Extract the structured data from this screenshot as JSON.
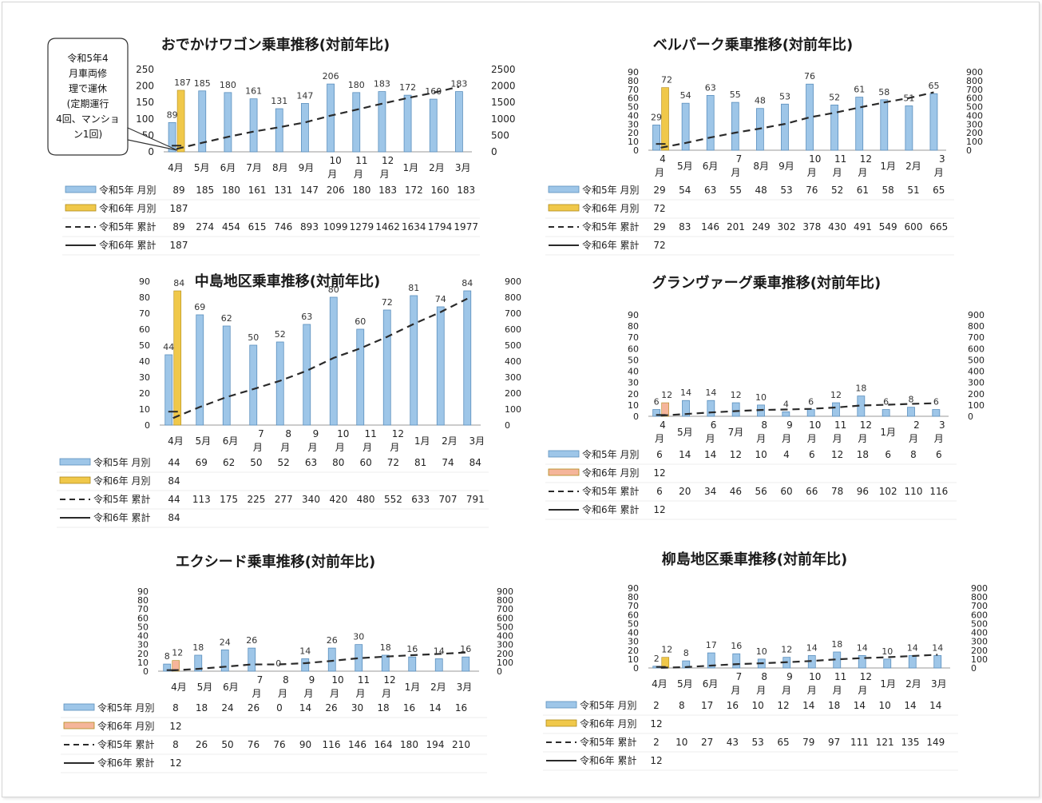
{
  "callout": "令和5年4月車両修理で運休(定期運行4回、マンション1回)",
  "callout_lines": [
    "令和5年4",
    "月車両修",
    "理で運休",
    "(定期運行",
    "4回、マンショ",
    "ン1回)"
  ],
  "month_labels": [
    "4月",
    "5月",
    "6月",
    "7月",
    "8月",
    "9月",
    "10月",
    "11月",
    "12月",
    "1月",
    "2月",
    "3月"
  ],
  "legend_labels": [
    "令和5年 月別",
    "令和6年 月別",
    "令和5年 累計",
    "令和6年 累計"
  ],
  "colors": {
    "r5_bar": "#9ec6e8",
    "r5_bar_stroke": "#5b8fbd",
    "r6_yellow": "#f0c84a",
    "r6_orange": "#f5b59a",
    "line": "#2a2a2a"
  },
  "chart_data": [
    {
      "type": "bar",
      "title": "おでかけワゴン乗車推移(対前年比)",
      "ylim": [
        0,
        250
      ],
      "ylim2": [
        0,
        2500
      ],
      "left_ticks": [
        0,
        50,
        100,
        150,
        200,
        250
      ],
      "right_ticks": [
        0,
        500,
        1000,
        1500,
        2000,
        2500
      ],
      "series": [
        {
          "name": "令和5年 月別",
          "values": [
            89,
            185,
            180,
            161,
            131,
            147,
            206,
            180,
            183,
            172,
            160,
            183
          ]
        },
        {
          "name": "令和6年 月別",
          "values": [
            187
          ]
        },
        {
          "name": "令和5年 累計",
          "values": [
            89,
            274,
            454,
            615,
            746,
            893,
            1099,
            1279,
            1462,
            1634,
            1794,
            1977
          ]
        },
        {
          "name": "令和6年 累計",
          "values": [
            187
          ]
        }
      ]
    },
    {
      "type": "bar",
      "title": "ベルパーク乗車推移(対前年比)",
      "ylim": [
        0,
        90
      ],
      "ylim2": [
        0,
        900
      ],
      "left_ticks": [
        0,
        10,
        20,
        30,
        40,
        50,
        60,
        70,
        80,
        90
      ],
      "right_ticks": [
        0,
        100,
        200,
        300,
        400,
        500,
        600,
        700,
        800,
        900
      ],
      "series": [
        {
          "name": "令和5年 月別",
          "values": [
            29,
            54,
            63,
            55,
            48,
            53,
            76,
            52,
            61,
            58,
            51,
            65
          ]
        },
        {
          "name": "令和6年 月別",
          "values": [
            72
          ]
        },
        {
          "name": "令和5年 累計",
          "values": [
            29,
            83,
            146,
            201,
            249,
            302,
            378,
            430,
            491,
            549,
            600,
            665
          ]
        },
        {
          "name": "令和6年 累計",
          "values": [
            72
          ]
        }
      ]
    },
    {
      "type": "bar",
      "title": "中島地区乗車推移(対前年比)",
      "ylim": [
        0,
        90
      ],
      "ylim2": [
        0,
        900
      ],
      "left_ticks": [
        0,
        10,
        20,
        30,
        40,
        50,
        60,
        70,
        80,
        90
      ],
      "right_ticks": [
        0,
        100,
        200,
        300,
        400,
        500,
        600,
        700,
        800,
        900
      ],
      "series": [
        {
          "name": "令和5年 月別",
          "values": [
            44,
            69,
            62,
            50,
            52,
            63,
            80,
            60,
            72,
            81,
            74,
            84
          ]
        },
        {
          "name": "令和6年 月別",
          "values": [
            84
          ]
        },
        {
          "name": "令和5年 累計",
          "values": [
            44,
            113,
            175,
            225,
            277,
            340,
            420,
            480,
            552,
            633,
            707,
            791
          ]
        },
        {
          "name": "令和6年 累計",
          "values": [
            84
          ]
        }
      ]
    },
    {
      "type": "bar",
      "title": "グランヴァーグ乗車推移(対前年比)",
      "ylim": [
        0,
        90
      ],
      "ylim2": [
        0,
        900
      ],
      "left_ticks": [
        0,
        10,
        20,
        30,
        40,
        50,
        60,
        70,
        80,
        90
      ],
      "right_ticks": [
        0,
        100,
        200,
        300,
        400,
        500,
        600,
        700,
        800,
        900
      ],
      "series": [
        {
          "name": "令和5年 月別",
          "values": [
            6,
            14,
            14,
            12,
            10,
            4,
            6,
            12,
            18,
            6,
            8,
            6
          ]
        },
        {
          "name": "令和6年 月別",
          "values": [
            12
          ]
        },
        {
          "name": "令和5年 累計",
          "values": [
            6,
            20,
            34,
            46,
            56,
            60,
            66,
            78,
            96,
            102,
            110,
            116
          ]
        },
        {
          "name": "令和6年 累計",
          "values": [
            12
          ]
        }
      ]
    },
    {
      "type": "bar",
      "title": "エクシード乗車推移(対前年比)",
      "ylim": [
        0,
        90
      ],
      "ylim2": [
        0,
        900
      ],
      "left_ticks": [
        0,
        10,
        20,
        30,
        40,
        50,
        60,
        70,
        80,
        90
      ],
      "right_ticks": [
        0,
        100,
        200,
        300,
        400,
        500,
        600,
        700,
        800,
        900
      ],
      "series": [
        {
          "name": "令和5年 月別",
          "values": [
            8,
            18,
            24,
            26,
            0,
            14,
            26,
            30,
            18,
            16,
            14,
            16
          ]
        },
        {
          "name": "令和6年 月別",
          "values": [
            12
          ]
        },
        {
          "name": "令和5年 累計",
          "values": [
            8,
            26,
            50,
            76,
            76,
            90,
            116,
            146,
            164,
            180,
            194,
            210
          ]
        },
        {
          "name": "令和6年 累計",
          "values": [
            12
          ]
        }
      ]
    },
    {
      "type": "bar",
      "title": "柳島地区乗車推移(対前年比)",
      "ylim": [
        0,
        90
      ],
      "ylim2": [
        0,
        900
      ],
      "left_ticks": [
        0,
        10,
        20,
        30,
        40,
        50,
        60,
        70,
        80,
        90
      ],
      "right_ticks": [
        0,
        100,
        200,
        300,
        400,
        500,
        600,
        700,
        800,
        900
      ],
      "series": [
        {
          "name": "令和5年 月別",
          "values": [
            2,
            8,
            17,
            16,
            10,
            12,
            14,
            18,
            14,
            10,
            14,
            14
          ]
        },
        {
          "name": "令和6年 月別",
          "values": [
            12
          ]
        },
        {
          "name": "令和5年 累計",
          "values": [
            2,
            10,
            27,
            43,
            53,
            65,
            79,
            97,
            111,
            121,
            135,
            149
          ]
        },
        {
          "name": "令和6年 累計",
          "values": [
            12
          ]
        }
      ]
    }
  ]
}
